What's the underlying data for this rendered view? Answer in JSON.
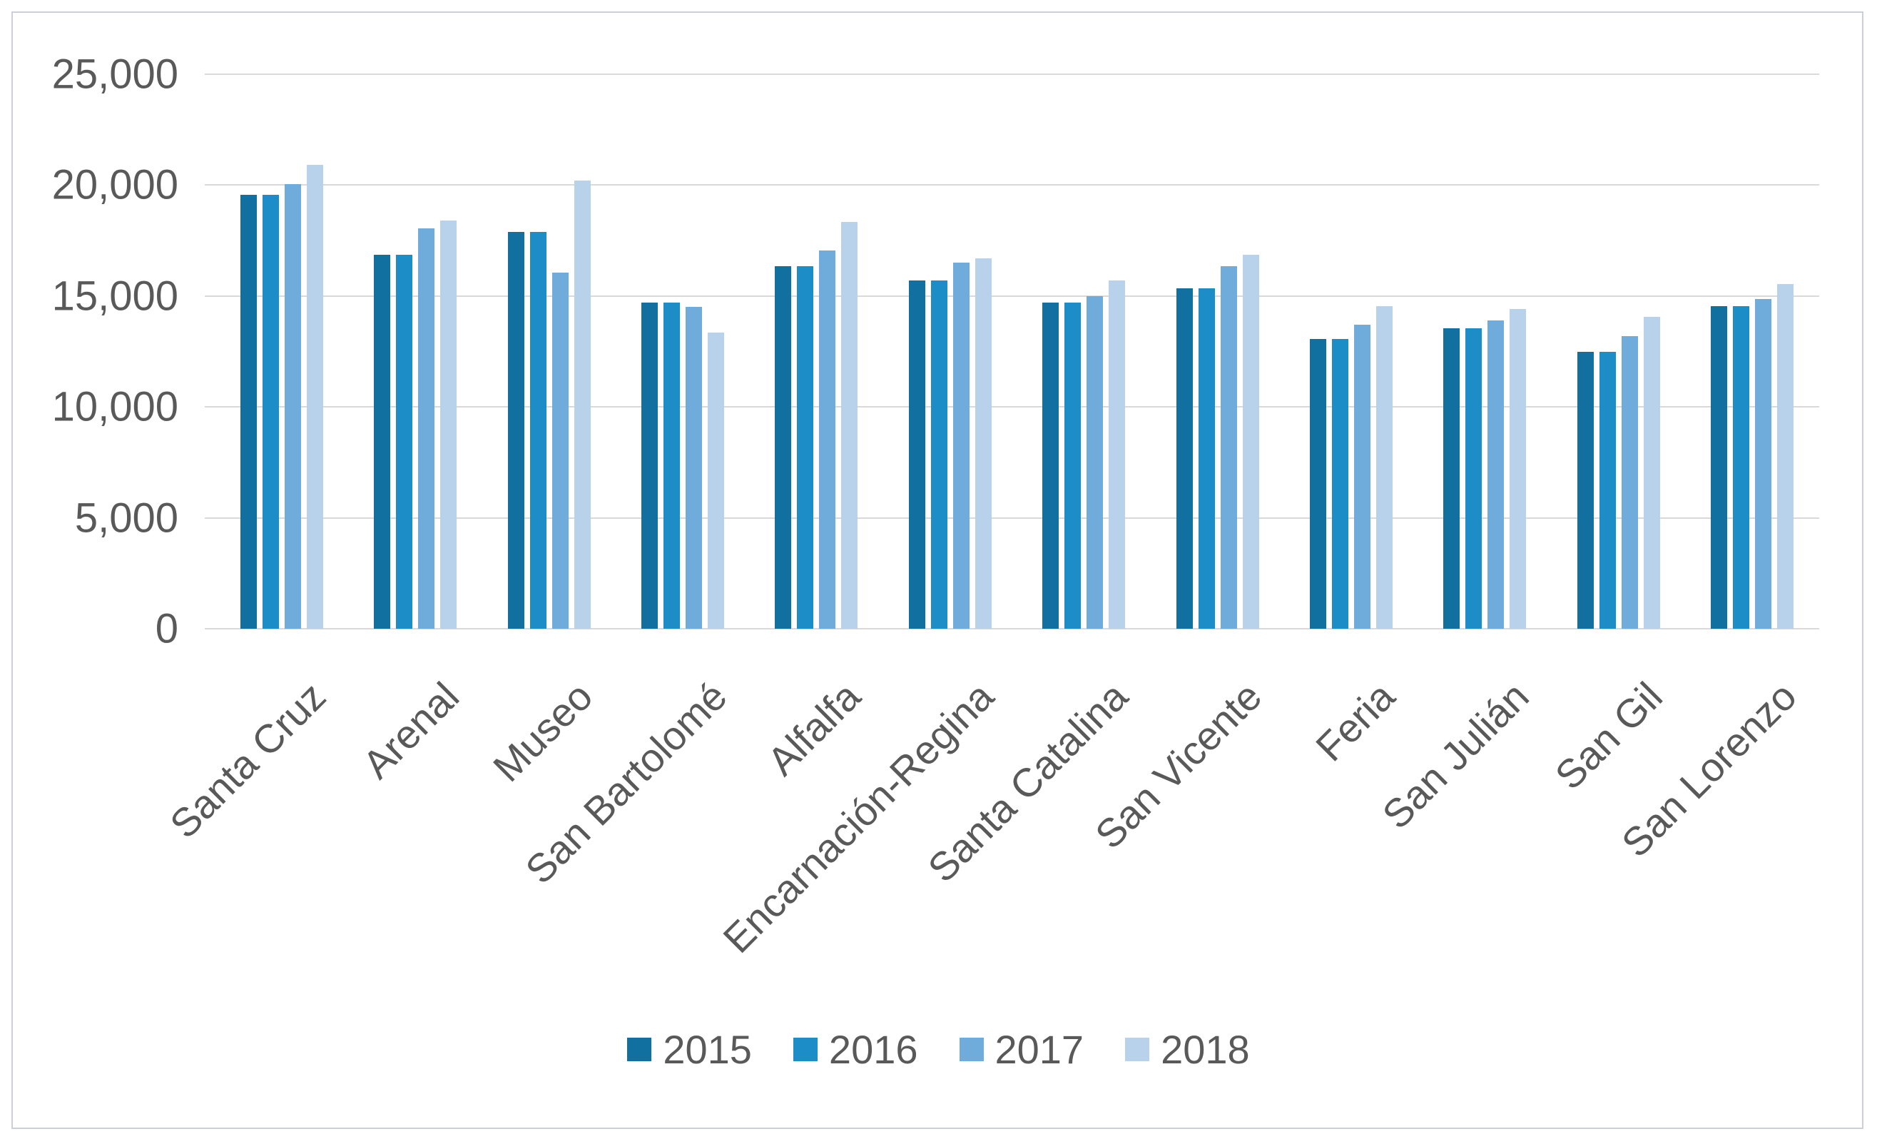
{
  "chart_data": {
    "type": "bar",
    "title": "",
    "xlabel": "",
    "ylabel": "",
    "categories": [
      "Santa Cruz",
      "Arenal",
      "Museo",
      "San Bartolomé",
      "Alfalfa",
      "Encarnación-Regina",
      "Santa Catalina",
      "San Vicente",
      "Feria",
      "San Julián",
      "San Gil",
      "San Lorenzo"
    ],
    "series": [
      {
        "name": "2015",
        "color": "#11709f",
        "values": [
          19550,
          16850,
          17900,
          14700,
          16350,
          15700,
          14700,
          15350,
          13050,
          13550,
          12500,
          14550
        ]
      },
      {
        "name": "2016",
        "color": "#1d8dc7",
        "values": [
          19550,
          16850,
          17900,
          14700,
          16350,
          15700,
          14700,
          15350,
          13050,
          13550,
          12500,
          14550
        ]
      },
      {
        "name": "2017",
        "color": "#6fabdb",
        "values": [
          20050,
          18050,
          16050,
          14500,
          17050,
          16500,
          15000,
          16350,
          13700,
          13900,
          13200,
          14850
        ]
      },
      {
        "name": "2018",
        "color": "#b9d2ec",
        "values": [
          20900,
          18400,
          20200,
          13350,
          18350,
          16700,
          15700,
          16850,
          14550,
          14400,
          14050,
          15550
        ]
      }
    ],
    "ylim": [
      0,
      25000
    ],
    "ytick_interval": 5000,
    "ytick_labels": [
      "0",
      "5,000",
      "10,000",
      "15,000",
      "20,000",
      "25,000"
    ],
    "grid": "horizontal",
    "gridline_color": "#d9d9d9",
    "axis_text_color": "#595959",
    "legend_position": "bottom",
    "legend_entries": [
      "2015",
      "2016",
      "2017",
      "2018"
    ],
    "x_label_rotation_deg": -45
  },
  "frame": {
    "border_color": "#ccd0d6",
    "background_color": "#ffffff"
  }
}
